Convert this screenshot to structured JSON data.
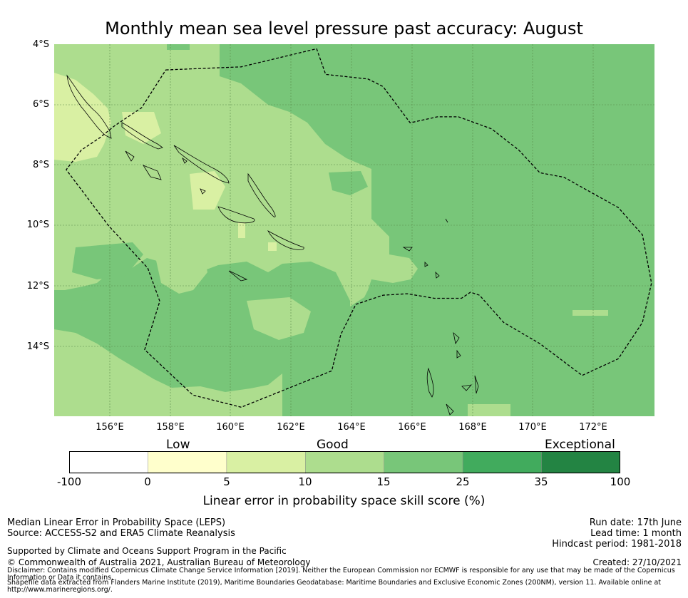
{
  "title": "Monthly mean sea level pressure past accuracy: August",
  "map": {
    "lat_labels": [
      "4°S",
      "6°S",
      "8°S",
      "10°S",
      "12°S",
      "14°S"
    ],
    "lon_labels": [
      "156°E",
      "158°E",
      "160°E",
      "162°E",
      "164°E",
      "166°E",
      "168°E",
      "170°E",
      "172°E"
    ],
    "lon_range": [
      154.1,
      174.0
    ],
    "lat_range": [
      -4.0,
      -16.3
    ],
    "eez_outline_lonlat": [
      [
        157.8,
        -4.85
      ],
      [
        160.3,
        -4.75
      ],
      [
        162.8,
        -4.15
      ],
      [
        163.1,
        -5.0
      ],
      [
        164.5,
        -5.15
      ],
      [
        165.0,
        -5.4
      ],
      [
        165.9,
        -6.6
      ],
      [
        166.8,
        -6.4
      ],
      [
        167.5,
        -6.4
      ],
      [
        168.6,
        -6.8
      ],
      [
        169.5,
        -7.5
      ],
      [
        170.2,
        -8.25
      ],
      [
        171.0,
        -8.4
      ],
      [
        172.8,
        -9.4
      ],
      [
        173.6,
        -10.3
      ],
      [
        173.9,
        -11.9
      ],
      [
        173.6,
        -13.2
      ],
      [
        172.8,
        -14.4
      ],
      [
        171.6,
        -14.95
      ],
      [
        170.2,
        -13.9
      ],
      [
        169.0,
        -13.2
      ],
      [
        168.2,
        -12.3
      ],
      [
        167.9,
        -12.2
      ],
      [
        167.6,
        -12.4
      ],
      [
        166.7,
        -12.4
      ],
      [
        165.8,
        -12.25
      ],
      [
        165.0,
        -12.3
      ],
      [
        164.1,
        -12.6
      ],
      [
        163.6,
        -13.6
      ],
      [
        163.3,
        -14.8
      ],
      [
        160.3,
        -16.0
      ],
      [
        158.7,
        -15.6
      ],
      [
        157.1,
        -14.1
      ],
      [
        157.6,
        -12.5
      ],
      [
        157.2,
        -11.4
      ],
      [
        155.9,
        -10.0
      ],
      [
        154.5,
        -8.15
      ],
      [
        155.0,
        -7.5
      ],
      [
        155.6,
        -7.1
      ],
      [
        156.1,
        -6.7
      ],
      [
        157.0,
        -6.1
      ],
      [
        157.8,
        -4.85
      ]
    ]
  },
  "colorbar": {
    "categories": [
      "Low",
      "Good",
      "Exceptional"
    ],
    "tick_labels": [
      "-100",
      "0",
      "5",
      "10",
      "15",
      "25",
      "35",
      "100"
    ],
    "colors": [
      "#ffffff",
      "#ffffcc",
      "#d9f0a3",
      "#addd8e",
      "#78c679",
      "#41ab5d",
      "#238443"
    ],
    "title": "Linear error in probability space skill score (%)"
  },
  "footer": {
    "method": "Median Linear Error in Probability Space (LEPS)",
    "source": "Source: ACCESS-S2 and ERA5 Climate Reanalysis",
    "run_date": "Run date: 17th June",
    "lead_time": "Lead time: 1 month",
    "hindcast": "Hindcast period: 1981-2018",
    "support": "Supported by Climate and Oceans Support Program in the Pacific",
    "copyright": "© Commonwealth of Australia 2021, Australian Bureau of Meteorology",
    "created": "Created: 27/10/2021",
    "disclaimer1": "Disclaimer: Contains modified Copernicus Climate Change Service Information [2019]. Neither the European Commission nor ECMWF is responsible for any use that may be made of the Copernicus",
    "disclaimer2": "Information or Data it contains.",
    "disclaimer3": "Shapefile data extracted from Flanders Marine Institute (2019), Maritime Boundaries Geodatabase: Maritime Boundaries and Exclusive Economic Zones (200NM), version 11. Available online at",
    "disclaimer4": "http://www.marineregions.org/."
  }
}
